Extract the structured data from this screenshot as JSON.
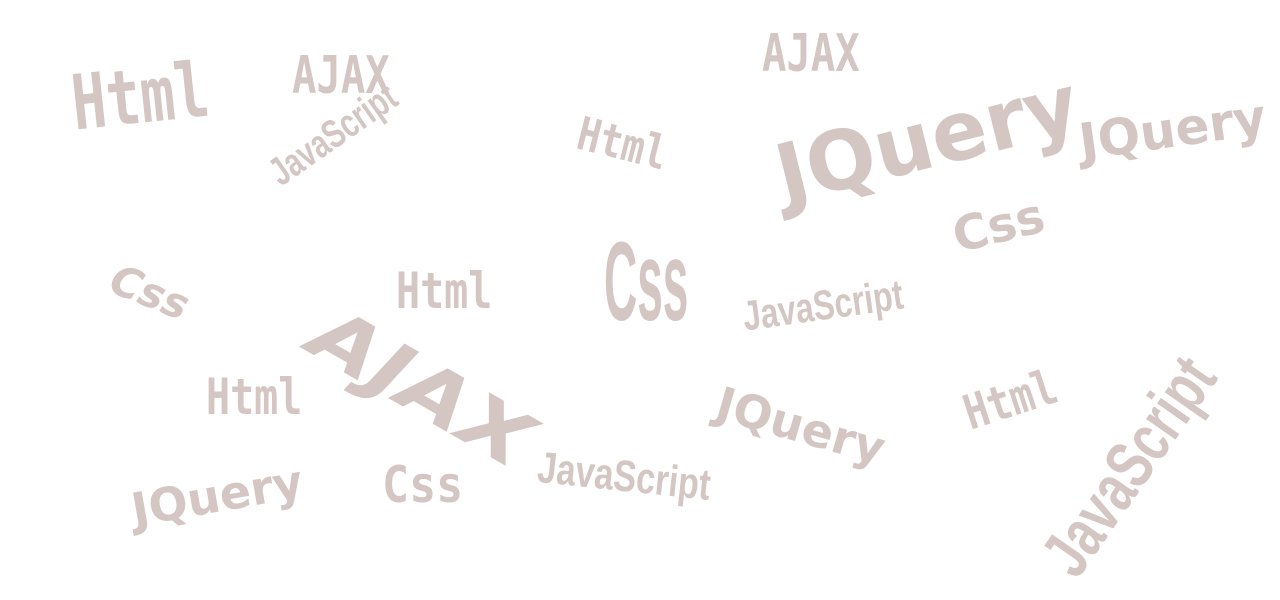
{
  "cloud": {
    "text_color": "#d4c6c3",
    "words": [
      "Html",
      "AJAX",
      "AJAX",
      "JavaScript",
      "Html",
      "JQuery",
      "JQuery",
      "Css",
      "Css",
      "Html",
      "Css",
      "JavaScript",
      "AJAX",
      "Html",
      "JQuery",
      "Html",
      "JavaScript",
      "JQuery",
      "Css",
      "JavaScript"
    ]
  }
}
